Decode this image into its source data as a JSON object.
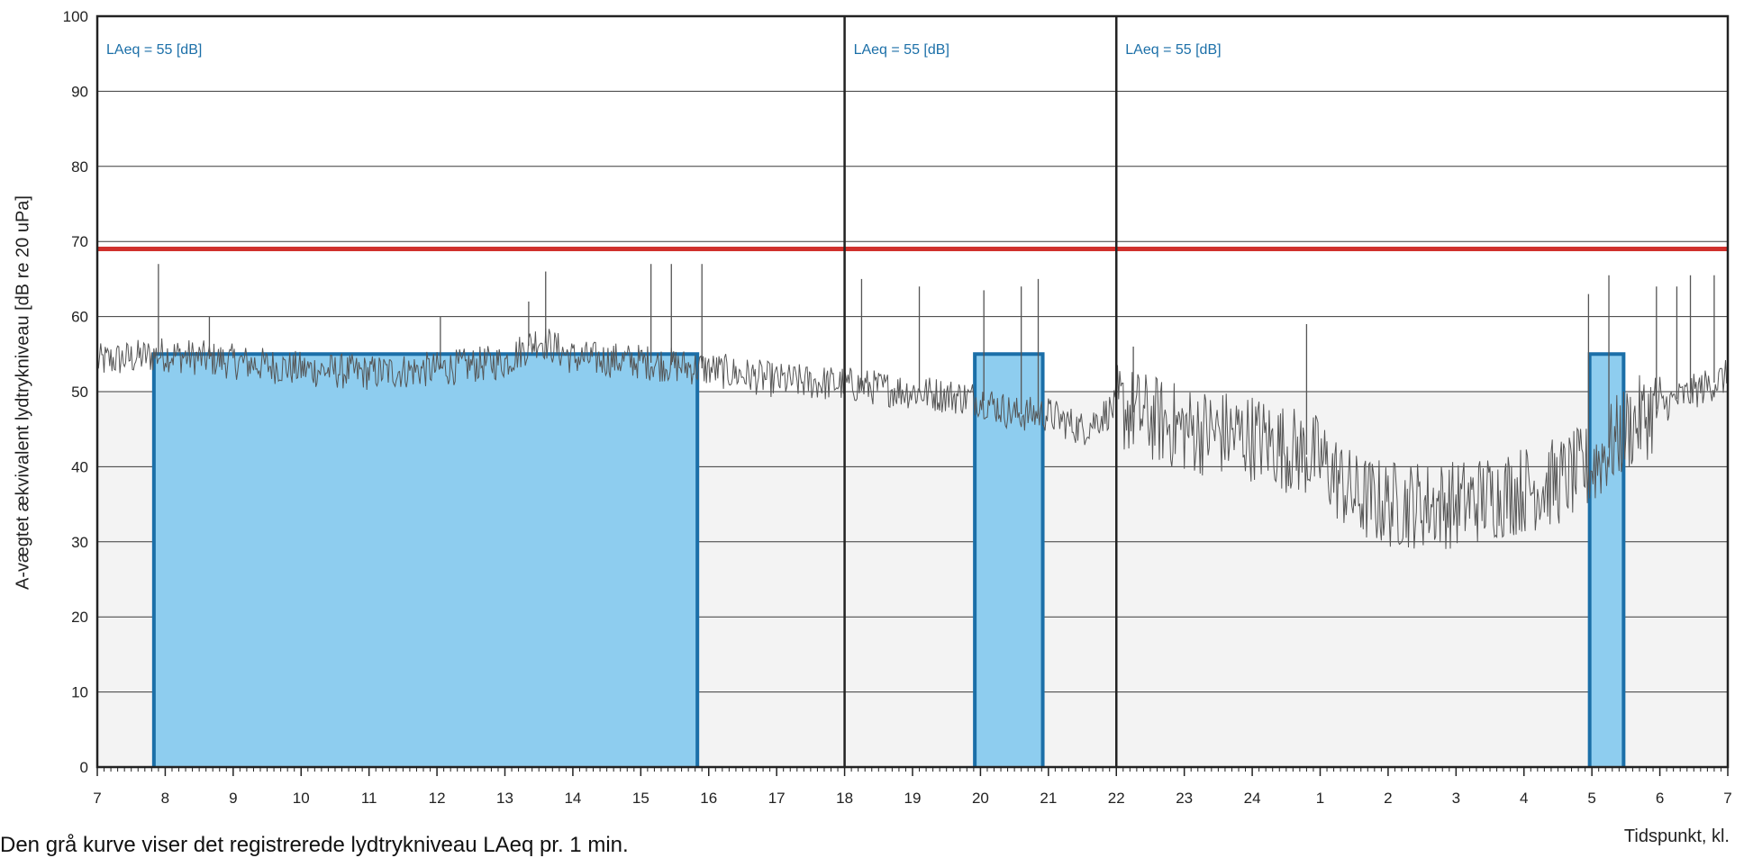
{
  "chart_data": {
    "type": "line",
    "ylabel": "A-vægtet ækvivalent lydtrykniveau [dB re 20 uPa]",
    "xlabel": "Tidspunkt, kl.",
    "ylim": [
      0,
      100
    ],
    "yticks": [
      0,
      10,
      20,
      30,
      40,
      50,
      60,
      70,
      80,
      90,
      100
    ],
    "x_tick_labels": [
      "7",
      "8",
      "9",
      "10",
      "11",
      "12",
      "13",
      "14",
      "15",
      "16",
      "17",
      "18",
      "19",
      "20",
      "21",
      "22",
      "23",
      "24",
      "1",
      "2",
      "3",
      "4",
      "5",
      "6",
      "7"
    ],
    "grid": true,
    "limit_line": {
      "value": 69,
      "color": "#d0312d"
    },
    "period_dividers_hours_from_start": [
      11,
      15
    ],
    "periods": [
      {
        "annotation": "LAeq = 55 [dB]",
        "start_hour": 7,
        "end_hour": 18
      },
      {
        "annotation": "LAeq = 55 [dB]",
        "start_hour": 18,
        "end_hour": 22
      },
      {
        "annotation": "LAeq = 55 [dB]",
        "start_hour": 22,
        "end_hour": 31
      }
    ],
    "laeq_blocks": [
      {
        "from": "7:50",
        "to": "15:50",
        "value": 55
      },
      {
        "from": "19:55",
        "to": "20:55",
        "value": 55
      },
      {
        "from": "04:58",
        "to": "05:28",
        "value": 55
      }
    ],
    "series": [
      {
        "x": [
          7.0,
          8.0,
          9.0,
          10.0,
          11.0,
          12.0,
          13.0,
          13.5,
          14.0,
          15.0,
          16.0,
          17.0,
          18.0,
          19.0,
          20.0,
          20.5,
          21.0,
          21.5,
          22.0,
          23.0,
          24.0,
          25.0,
          25.5,
          26.0,
          27.0,
          28.0,
          28.5,
          29.0,
          29.5,
          30.0,
          30.5,
          31.0
        ],
        "values": [
          54,
          55,
          54,
          53,
          52.5,
          53,
          54,
          57,
          54.5,
          54,
          53,
          51.5,
          51,
          50,
          49,
          47,
          47,
          45,
          48,
          45,
          44,
          41,
          36,
          35,
          35,
          37,
          38,
          40,
          45,
          48,
          50,
          52
        ]
      }
    ],
    "peaks": [
      {
        "x": 7.9,
        "value": 67
      },
      {
        "x": 8.65,
        "value": 60
      },
      {
        "x": 12.05,
        "value": 60
      },
      {
        "x": 13.35,
        "value": 62
      },
      {
        "x": 13.6,
        "value": 66
      },
      {
        "x": 15.15,
        "value": 67
      },
      {
        "x": 15.45,
        "value": 67
      },
      {
        "x": 15.9,
        "value": 67
      },
      {
        "x": 18.25,
        "value": 65
      },
      {
        "x": 19.1,
        "value": 64
      },
      {
        "x": 20.05,
        "value": 63.5
      },
      {
        "x": 20.6,
        "value": 64
      },
      {
        "x": 20.85,
        "value": 65
      },
      {
        "x": 22.25,
        "value": 56
      },
      {
        "x": 24.8,
        "value": 59
      },
      {
        "x": 28.95,
        "value": 63
      },
      {
        "x": 29.25,
        "value": 65.5
      },
      {
        "x": 29.95,
        "value": 64
      },
      {
        "x": 30.25,
        "value": 64
      },
      {
        "x": 30.45,
        "value": 65.5
      },
      {
        "x": 30.8,
        "value": 65.5
      }
    ]
  },
  "caption": "Den grå kurve viser det registrerede lydtrykniveau LAeq pr. 1 min.",
  "colors": {
    "fill": "#8ecdef",
    "block_border": "#1b6fa8",
    "limit": "#d0312d",
    "trace": "#555555",
    "annotation": "#1b6fa8"
  }
}
